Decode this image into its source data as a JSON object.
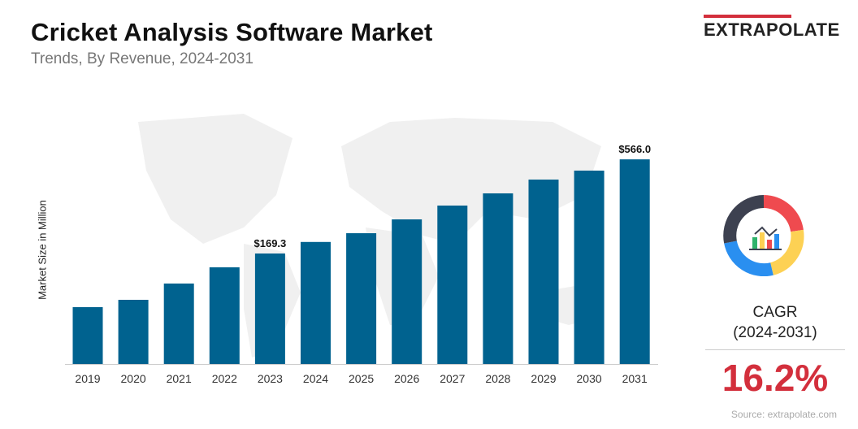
{
  "header": {
    "title": "Cricket Analysis Software Market",
    "subtitle": "Trends, By Revenue,  2024-2031"
  },
  "logo": {
    "text": "EXTRAPOLATE",
    "accent": "#d32f3c"
  },
  "chart_data": {
    "type": "bar",
    "ylabel": "Market Size in Million",
    "categories": [
      "2019",
      "2020",
      "2021",
      "2022",
      "2023",
      "2024",
      "2025",
      "2026",
      "2027",
      "2028",
      "2029",
      "2030",
      "2031"
    ],
    "values": [
      85.1,
      93.5,
      115.2,
      141.8,
      169.3,
      196.3,
      219.6,
      262.2,
      313.0,
      366.0,
      436.8,
      490.0,
      566.0
    ],
    "data_labels": {
      "2023": "$169.3",
      "2031": "$566.0"
    },
    "bar_color": "#00628f",
    "grid": false,
    "background": "world-map-watermark"
  },
  "cagr": {
    "label_line1": "CAGR",
    "label_line2": "(2024-2031)",
    "value": "16.2%",
    "icon": "analytics-donut-icon"
  },
  "source": "Source: extrapolate.com"
}
